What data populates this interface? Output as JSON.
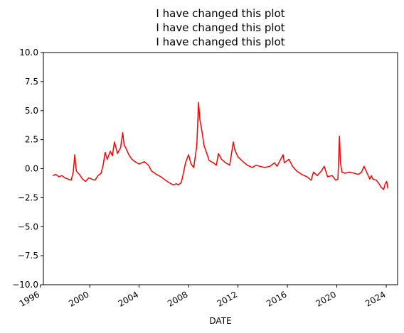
{
  "chart_data": {
    "type": "line",
    "title_lines": [
      "I have changed this plot",
      "I have changed this plot",
      "I have changed this plot"
    ],
    "xlabel": "DATE",
    "ylabel": "",
    "xlim": [
      "1996-04-01",
      "2024-12-01"
    ],
    "ylim": [
      -10,
      10
    ],
    "grid": false,
    "legend": "none",
    "x_ticks": [
      {
        "value": "1996-01-01",
        "label": "1996"
      },
      {
        "value": "2000-01-01",
        "label": "2000"
      },
      {
        "value": "2004-01-01",
        "label": "2004"
      },
      {
        "value": "2008-01-01",
        "label": "2008"
      },
      {
        "value": "2012-01-01",
        "label": "2012"
      },
      {
        "value": "2016-01-01",
        "label": "2016"
      },
      {
        "value": "2020-01-01",
        "label": "2020"
      },
      {
        "value": "2024-01-01",
        "label": "2024"
      }
    ],
    "y_ticks": [
      {
        "value": 10,
        "label": "10.0"
      },
      {
        "value": 7.5,
        "label": "7.5"
      },
      {
        "value": 5,
        "label": "5.0"
      },
      {
        "value": 2.5,
        "label": "2.5"
      },
      {
        "value": 0,
        "label": "0.0"
      },
      {
        "value": -2.5,
        "label": "−2.5"
      },
      {
        "value": -5,
        "label": "−5.0"
      },
      {
        "value": -7.5,
        "label": "−7.5"
      },
      {
        "value": -10,
        "label": "−10.0"
      }
    ],
    "series": [
      {
        "color": "#ff0000",
        "x": [
          "1997-01-01",
          "1997-04-01",
          "1997-07-01",
          "1997-10-01",
          "1998-01-01",
          "1998-04-01",
          "1998-07-01",
          "1998-09-01",
          "1998-10-15",
          "1998-12-01",
          "1999-03-01",
          "1999-06-01",
          "1999-09-01",
          "1999-12-01",
          "2000-03-01",
          "2000-06-01",
          "2000-09-01",
          "2000-12-01",
          "2001-02-01",
          "2001-04-01",
          "2001-06-01",
          "2001-09-01",
          "2001-11-01",
          "2002-01-01",
          "2002-04-01",
          "2002-07-01",
          "2002-09-01",
          "2002-10-15",
          "2002-12-01",
          "2003-03-01",
          "2003-06-01",
          "2003-09-01",
          "2004-01-01",
          "2004-06-01",
          "2004-10-01",
          "2005-01-01",
          "2005-06-01",
          "2005-10-01",
          "2006-01-01",
          "2006-06-01",
          "2006-10-01",
          "2007-01-01",
          "2007-03-01",
          "2007-06-01",
          "2007-08-15",
          "2007-10-01",
          "2008-01-01",
          "2008-03-15",
          "2008-06-01",
          "2008-09-01",
          "2008-10-20",
          "2008-12-01",
          "2009-02-01",
          "2009-04-01",
          "2009-06-01",
          "2009-09-01",
          "2010-01-01",
          "2010-04-01",
          "2010-06-01",
          "2010-09-01",
          "2011-01-01",
          "2011-05-01",
          "2011-08-15",
          "2011-10-01",
          "2012-01-01",
          "2012-06-01",
          "2012-10-01",
          "2013-03-01",
          "2013-06-15",
          "2013-10-01",
          "2014-03-01",
          "2014-08-01",
          "2014-12-15",
          "2015-03-01",
          "2015-08-25",
          "2015-10-01",
          "2016-02-15",
          "2016-06-01",
          "2016-10-01",
          "2017-03-01",
          "2017-08-01",
          "2017-12-01",
          "2018-02-10",
          "2018-06-01",
          "2018-10-01",
          "2018-12-25",
          "2019-04-01",
          "2019-08-15",
          "2019-12-01",
          "2020-02-01",
          "2020-03-20",
          "2020-04-15",
          "2020-06-01",
          "2020-09-01",
          "2021-01-01",
          "2021-06-01",
          "2021-10-01",
          "2022-01-01",
          "2022-03-15",
          "2022-06-15",
          "2022-09-01",
          "2022-10-15",
          "2022-12-01",
          "2023-03-15",
          "2023-06-01",
          "2023-08-01",
          "2023-10-15",
          "2023-12-01",
          "2024-01-15",
          "2024-02-15"
        ],
        "values": [
          -0.6,
          -0.5,
          -0.7,
          -0.6,
          -0.8,
          -0.9,
          -1.0,
          -0.3,
          1.2,
          -0.2,
          -0.5,
          -0.9,
          -1.1,
          -0.8,
          -0.9,
          -1.0,
          -0.6,
          -0.4,
          0.3,
          1.4,
          0.8,
          1.5,
          1.1,
          2.3,
          1.3,
          1.8,
          3.1,
          2.0,
          1.8,
          1.2,
          0.8,
          0.6,
          0.4,
          0.6,
          0.3,
          -0.2,
          -0.5,
          -0.7,
          -0.9,
          -1.2,
          -1.4,
          -1.3,
          -1.4,
          -1.2,
          -0.2,
          0.5,
          1.2,
          0.4,
          0.1,
          2.0,
          5.7,
          4.2,
          3.2,
          2.0,
          1.5,
          0.7,
          0.5,
          0.3,
          1.3,
          0.8,
          0.5,
          0.3,
          2.3,
          1.6,
          1.0,
          0.6,
          0.3,
          0.1,
          0.3,
          0.2,
          0.1,
          0.2,
          0.5,
          0.2,
          1.2,
          0.5,
          0.8,
          0.2,
          -0.2,
          -0.5,
          -0.7,
          -1.0,
          -0.3,
          -0.6,
          -0.2,
          0.2,
          -0.7,
          -0.6,
          -1.0,
          -0.9,
          2.8,
          0.5,
          -0.3,
          -0.4,
          -0.3,
          -0.4,
          -0.5,
          -0.3,
          0.2,
          -0.4,
          -0.9,
          -0.6,
          -0.9,
          -1.0,
          -1.3,
          -1.6,
          -1.8,
          -1.3,
          -1.1,
          -1.7
        ]
      }
    ]
  }
}
